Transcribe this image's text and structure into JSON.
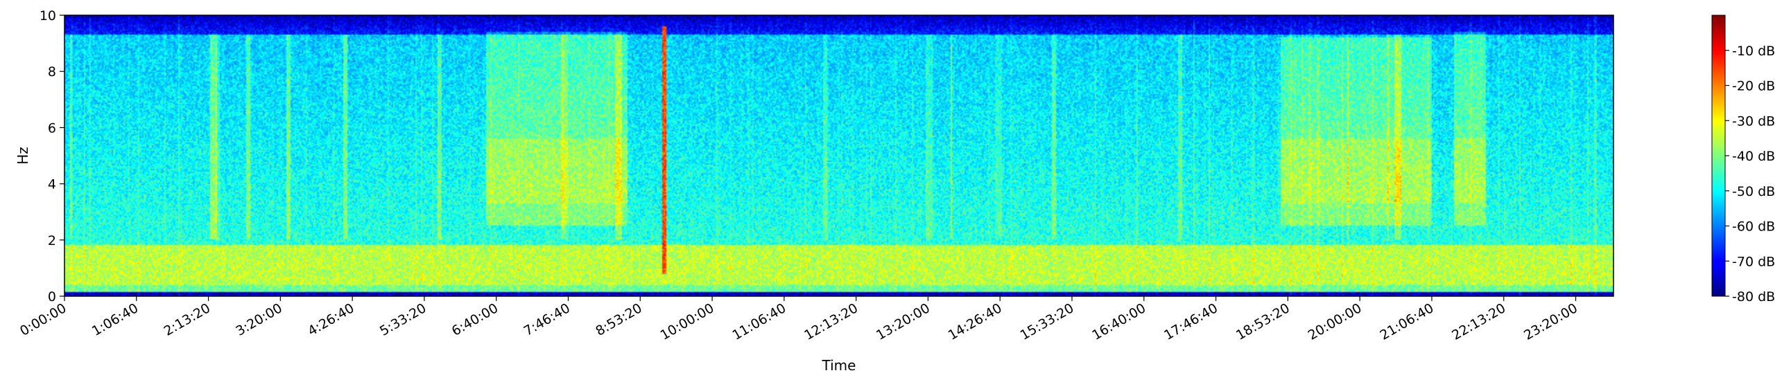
{
  "chart_data": {
    "type": "heatmap",
    "title": "",
    "xlabel": "Time",
    "ylabel": "Hz",
    "x_tick_labels": [
      "0:00:00",
      "1:06:40",
      "2:13:20",
      "3:20:00",
      "4:26:40",
      "5:33:20",
      "6:40:00",
      "7:46:40",
      "8:53:20",
      "10:00:00",
      "11:06:40",
      "12:13:20",
      "13:20:00",
      "14:26:40",
      "15:33:20",
      "16:40:00",
      "17:46:40",
      "18:53:20",
      "20:00:00",
      "21:06:40",
      "22:13:20",
      "23:20:00"
    ],
    "xlim_seconds": [
      0,
      86100
    ],
    "y_ticks": [
      0,
      2,
      4,
      6,
      8,
      10
    ],
    "y_tick_labels": [
      "0",
      "2",
      "4",
      "6",
      "8",
      "10"
    ],
    "ylim": [
      0,
      10
    ],
    "colorbar": {
      "colormap": "jet",
      "range_db": [
        -80,
        0
      ],
      "tick_values": [
        -10,
        -20,
        -30,
        -40,
        -50,
        -60,
        -70,
        -80
      ],
      "tick_labels": [
        "-10 dB",
        "-20 dB",
        "-30 dB",
        "-40 dB",
        "-50 dB",
        "-60 dB",
        "-70 dB",
        "-80 dB"
      ]
    },
    "features": {
      "low_freq_band_hz": [
        0.3,
        1.8
      ],
      "high_freq_rolloff_hz": 9.3,
      "impulse_time_seconds": 33300,
      "active_blocks": [
        {
          "start_seconds": 23400,
          "end_seconds": 31300,
          "fmin_hz": 2.5,
          "fmax_hz": 9.4
        },
        {
          "start_seconds": 67600,
          "end_seconds": 76000,
          "fmin_hz": 2.5,
          "fmax_hz": 9.2
        },
        {
          "start_seconds": 77200,
          "end_seconds": 79000,
          "fmin_hz": 2.5,
          "fmax_hz": 9.4
        }
      ]
    }
  }
}
